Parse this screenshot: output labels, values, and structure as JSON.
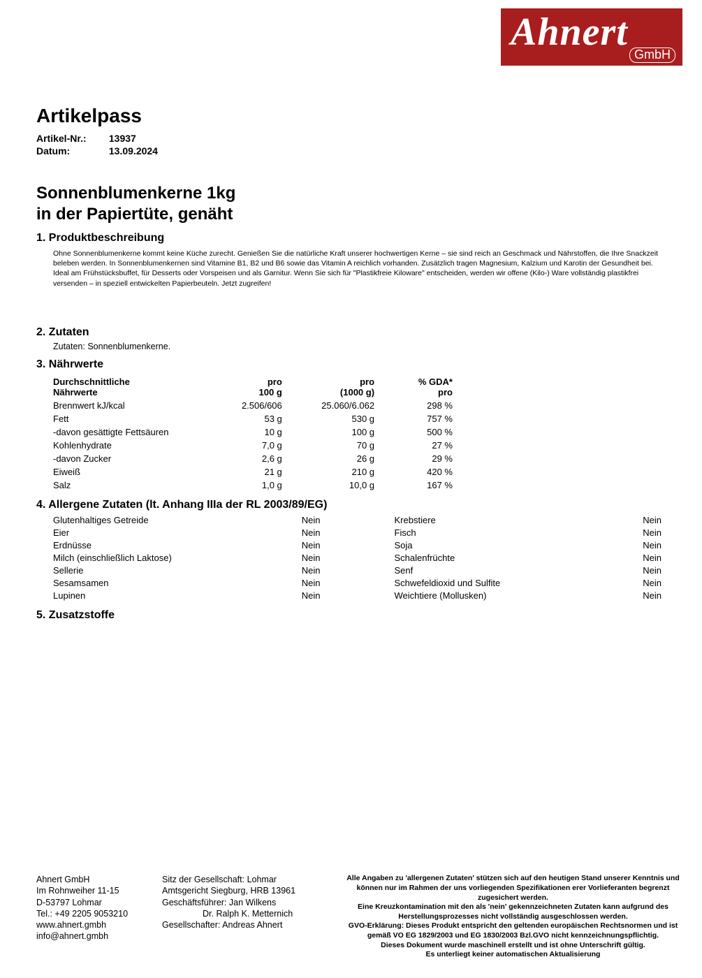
{
  "logo": {
    "name": "Ahnert",
    "suffix": "GmbH"
  },
  "doc_title": "Artikelpass",
  "meta": {
    "artnr_label": "Artikel-Nr.:",
    "artnr": "13937",
    "date_label": "Datum:",
    "date": "13.09.2024"
  },
  "product_title_l1": "Sonnenblumenkerne 1kg",
  "product_title_l2": "in der Papiertüte, genäht",
  "sections": {
    "s1": "1. Produktbeschreibung",
    "s2": "2. Zutaten",
    "s3": "3. Nährwerte",
    "s4": "4. Allergene Zutaten (lt. Anhang IIIa der RL 2003/89/EG)",
    "s5": "5. Zusatzstoffe"
  },
  "description": "Ohne Sonnenblumenkerne kommt keine Küche zurecht. Genießen Sie die natürliche Kraft unserer hochwertigen Kerne – sie sind reich an Geschmack und Nährstoffen, die Ihre Snackzeit beleben werden. In Sonnenblumenkernen sind Vitamine B1, B2 und B6 sowie das Vitamin A reichlich vorhanden. Zusätzlich tragen Magnesium, Kalzium und Karotin der Gesundheit bei. Ideal am Frühstücksbuffet, für Desserts oder Vorspeisen und als Garnitur. Wenn Sie sich für \"Plastikfreie Kiloware\" entscheiden, werden wir offene (Kilo-) Ware vollständig plastikfrei versenden – in speziell entwickelten Papierbeuteln. Jetzt zugreifen!",
  "ingredients": "Zutaten: Sonnenblumenkerne.",
  "nutr_headers": {
    "h1a": "Durchschnittliche",
    "h1b": "Nährwerte",
    "h2a": "pro",
    "h2b": "100 g",
    "h3a": "pro",
    "h3b": "(1000 g)",
    "h4a": "% GDA*",
    "h4b": "pro"
  },
  "nutr_rows": [
    {
      "n": "Brennwert kJ/kcal",
      "p100": "2.506/606",
      "p1000": "25.060/6.062",
      "gda": "298 %"
    },
    {
      "n": "Fett",
      "p100": "53 g",
      "p1000": "530 g",
      "gda": "757 %"
    },
    {
      "n": "-davon gesättigte Fettsäuren",
      "p100": "10 g",
      "p1000": "100 g",
      "gda": "500 %"
    },
    {
      "n": "Kohlenhydrate",
      "p100": "7,0 g",
      "p1000": "70 g",
      "gda": "27 %"
    },
    {
      "n": "-davon Zucker",
      "p100": "2,6 g",
      "p1000": "26 g",
      "gda": "29 %"
    },
    {
      "n": "Eiweiß",
      "p100": "21 g",
      "p1000": "210 g",
      "gda": "420 %"
    },
    {
      "n": "Salz",
      "p100": "1,0 g",
      "p1000": "10,0 g",
      "gda": "167 %"
    }
  ],
  "allergens_left": [
    {
      "n": "Glutenhaltiges Getreide",
      "v": "Nein"
    },
    {
      "n": "Eier",
      "v": "Nein"
    },
    {
      "n": "Erdnüsse",
      "v": "Nein"
    },
    {
      "n": "Milch (einschließlich Laktose)",
      "v": "Nein"
    },
    {
      "n": "Sellerie",
      "v": "Nein"
    },
    {
      "n": "Sesamsamen",
      "v": "Nein"
    },
    {
      "n": "Lupinen",
      "v": "Nein"
    }
  ],
  "allergens_right": [
    {
      "n": "Krebstiere",
      "v": "Nein"
    },
    {
      "n": "Fisch",
      "v": "Nein"
    },
    {
      "n": "Soja",
      "v": "Nein"
    },
    {
      "n": "Schalenfrüchte",
      "v": "Nein"
    },
    {
      "n": "Senf",
      "v": "Nein"
    },
    {
      "n": "Schwefeldioxid und Sulfite",
      "v": "Nein"
    },
    {
      "n": "Weichtiere (Mollusken)",
      "v": "Nein"
    }
  ],
  "footer": {
    "company": {
      "l1": "Ahnert GmbH",
      "l2": "Im Rohnweiher 11-15",
      "l3": "D-53797 Lohmar",
      "l4": "Tel.: +49 2205 9053210",
      "l5": "www.ahnert.gmbh",
      "l6": "info@ahnert.gmbh"
    },
    "legal": {
      "l1": "Sitz der Gesellschaft: Lohmar",
      "l2": "Amtsgericht Siegburg, HRB 13961",
      "l3": "Geschäftsführer: Jan Wilkens",
      "l4": "Dr. Ralph K. Metternich",
      "l5": "Gesellschafter: Andreas Ahnert"
    },
    "disclaimer": {
      "l1": "Alle Angaben zu 'allergenen Zutaten' stützen sich auf den heutigen Stand unserer Kenntnis und können nur im Rahmen der uns vorliegenden Spezifikationen erer Vorlieferanten begrenzt zugesichert werden.",
      "l2": "Eine Kreuzkontamination mit den als 'nein' gekennzeichneten Zutaten kann aufgrund des Herstellungsprozesses nicht vollständig ausgeschlossen werden.",
      "l3": "GVO-Erklärung: Dieses Produkt entspricht den geltenden europäischen Rechtsnormen und ist gemäß VO EG 1829/2003 und EG 1830/2003 Bzl.GVO nicht kennzeichnungspflichtig.",
      "l4": "Dieses Dokument wurde maschinell erstellt und ist ohne Unterschrift gültig.",
      "l5": "Es unterliegt keiner automatischen Aktualisierung"
    }
  }
}
